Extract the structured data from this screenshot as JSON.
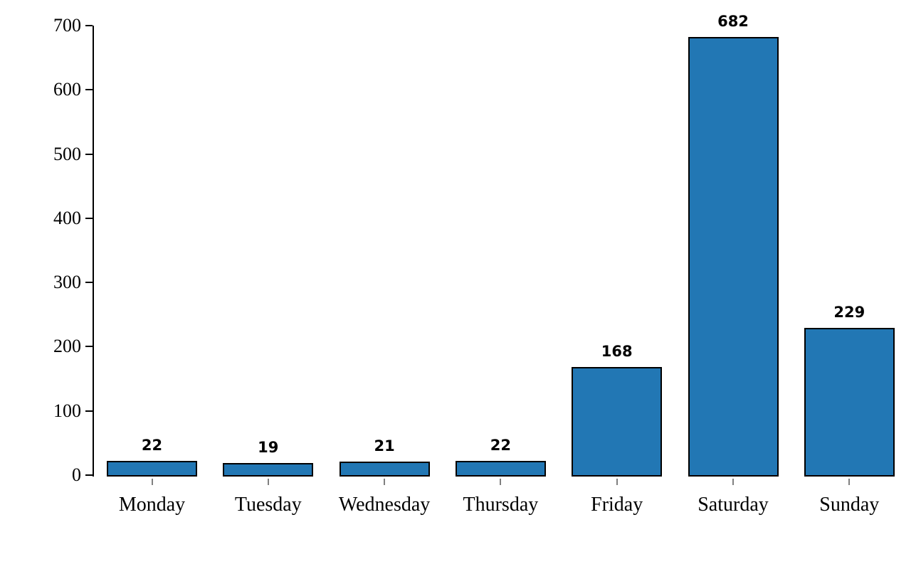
{
  "chart_data": {
    "type": "bar",
    "title": "",
    "xlabel": "",
    "ylabel": "",
    "categories": [
      "Monday",
      "Tuesday",
      "Wednesday",
      "Thursday",
      "Friday",
      "Saturday",
      "Sunday"
    ],
    "values": [
      22,
      19,
      21,
      22,
      168,
      682,
      229
    ],
    "value_labels": [
      "22",
      "19",
      "21",
      "22",
      "168",
      "682",
      "229"
    ],
    "ylim": [
      0,
      700
    ],
    "yticks": [
      0,
      100,
      200,
      300,
      400,
      500,
      600,
      700
    ],
    "grid": false,
    "legend_position": "none",
    "bar_value_labels_shown": true,
    "colors": {
      "bar_fill": "#2277B4",
      "bar_edge": "#000000",
      "axis": "#000000",
      "x_tick": "#808080",
      "background": "#FFFFFF",
      "text": "#000000"
    }
  }
}
